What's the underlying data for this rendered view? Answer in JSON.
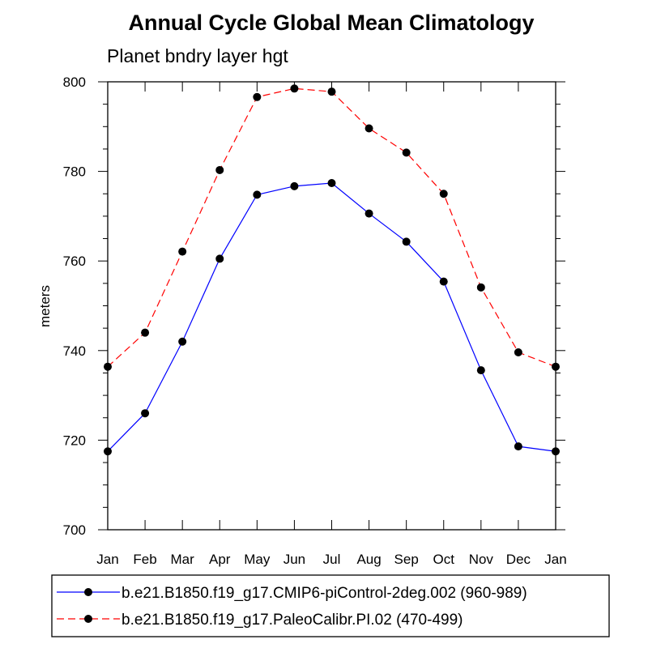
{
  "chart_data": {
    "type": "line",
    "title": "Annual Cycle Global Mean Climatology",
    "subtitle": "Planet bndry layer hgt",
    "xlabel": "",
    "ylabel": "meters",
    "categories": [
      "Jan",
      "Feb",
      "Mar",
      "Apr",
      "May",
      "Jun",
      "Jul",
      "Aug",
      "Sep",
      "Oct",
      "Nov",
      "Dec",
      "Jan"
    ],
    "ylim": [
      700,
      800
    ],
    "yticks": [
      700,
      720,
      740,
      760,
      780,
      800
    ],
    "series": [
      {
        "name": "b.e21.B1850.f19_g17.CMIP6-piControl-2deg.002 (960-989)",
        "color": "#0000ff",
        "style": "solid",
        "values": [
          717.5,
          726.0,
          742.0,
          760.5,
          774.8,
          776.7,
          777.4,
          770.6,
          764.3,
          755.4,
          735.6,
          718.6,
          717.5
        ]
      },
      {
        "name": "b.e21.B1850.f19_g17.PaleoCalibr.PI.02 (470-499)",
        "color": "#ff0000",
        "style": "dashed",
        "values": [
          736.4,
          744.0,
          762.1,
          780.3,
          796.6,
          798.5,
          797.8,
          789.6,
          784.2,
          775.0,
          754.1,
          739.6,
          736.4
        ]
      }
    ],
    "grid": false,
    "legend_position": "bottom"
  }
}
